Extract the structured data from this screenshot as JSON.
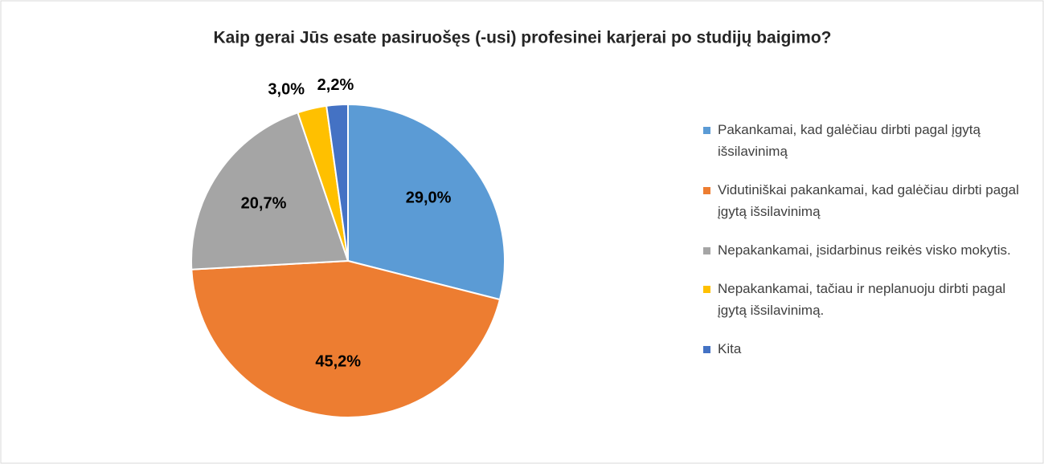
{
  "chart_data": {
    "type": "pie",
    "title": "Kaip gerai Jūs esate pasiruošęs (-usi) profesinei karjerai po studijų baigimo?",
    "categories": [
      "Pakankamai, kad galėčiau dirbti pagal įgytą išsilavinimą",
      "Vidutiniškai pakankamai, kad galėčiau dirbti pagal įgytą išsilavinimą",
      "Nepakankamai, įsidarbinus reikės visko mokytis.",
      "Nepakankamai, tačiau ir neplanuoju dirbti pagal įgytą išsilavinimą.",
      "Kita"
    ],
    "values": [
      29.0,
      45.2,
      20.7,
      3.0,
      2.2
    ],
    "value_labels": [
      "29,0%",
      "45,2%",
      "20,7%",
      "3,0%",
      "2,2%"
    ],
    "colors": [
      "#5b9bd5",
      "#ed7d31",
      "#a5a5a5",
      "#ffc000",
      "#4472c4"
    ],
    "legend": "right"
  }
}
